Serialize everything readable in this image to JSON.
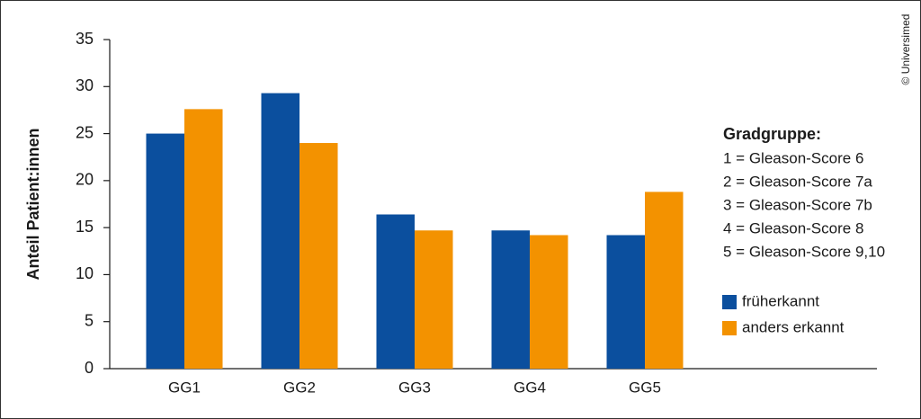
{
  "chart_data": {
    "type": "bar",
    "y_label": "Anteil Patient:innen",
    "categories": [
      "GG1",
      "GG2",
      "GG3",
      "GG4",
      "GG5"
    ],
    "series": [
      {
        "name": "früherkannt",
        "color": "#0b4f9e",
        "values": [
          25.0,
          29.3,
          16.4,
          14.7,
          14.2
        ]
      },
      {
        "name": "anders erkannt",
        "color": "#f39200",
        "values": [
          27.6,
          24.0,
          14.7,
          14.2,
          18.8
        ]
      }
    ],
    "ylim": [
      0,
      35
    ],
    "yticks": [
      0,
      5,
      10,
      15,
      20,
      25,
      30,
      35
    ],
    "legend_title": "Gradgruppe:",
    "notes": [
      "1 = Gleason-Score 6",
      "2 = Gleason-Score 7a",
      "3 = Gleason-Score 7b",
      "4 = Gleason-Score 8",
      "5 = Gleason-Score 9,10"
    ],
    "credit": "© Universimed"
  }
}
